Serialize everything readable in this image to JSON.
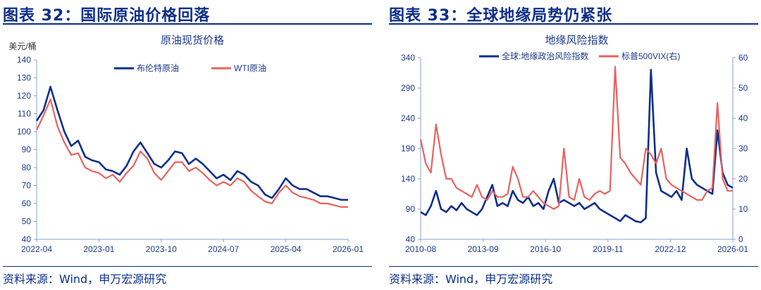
{
  "left": {
    "title": "图表 32：国际原油价格回落",
    "source": "资料来源：Wind，申万宏源研究"
  },
  "right": {
    "title": "图表 33：全球地缘局势仍紧张",
    "source": "资料来源：Wind，申万宏源研究"
  },
  "colors": {
    "navy": "#0e2f8c",
    "red": "#e8625f",
    "text": "#1d3a8a"
  },
  "chart_data": [
    {
      "type": "line",
      "title": "原油现货价格",
      "ylabel": "美元/桶",
      "ylim": [
        40,
        140
      ],
      "yticks": [
        "40",
        "50",
        "60",
        "70",
        "80",
        "90",
        "100",
        "110",
        "120",
        "130",
        "140"
      ],
      "xticks": [
        "2022-04",
        "2023-01",
        "2023-10",
        "2024-07",
        "2025-04",
        "2026-01"
      ],
      "x_start": "2022-04",
      "x_end": "2026-01",
      "legend": "top",
      "series": [
        {
          "name": "布伦特原油",
          "color": "#0e2f8c",
          "values": [
            106,
            112,
            125,
            112,
            100,
            92,
            95,
            86,
            84,
            83,
            79,
            78,
            76,
            81,
            89,
            94,
            88,
            82,
            80,
            84,
            89,
            88,
            82,
            85,
            82,
            78,
            74,
            76,
            73,
            78,
            76,
            72,
            70,
            65,
            63,
            68,
            74,
            70,
            68,
            68,
            66,
            64,
            64,
            63,
            62,
            62
          ]
        },
        {
          "name": "WTI原油",
          "color": "#e8625f",
          "values": [
            101,
            109,
            118,
            103,
            94,
            87,
            88,
            80,
            78,
            77,
            74,
            76,
            72,
            77,
            81,
            89,
            85,
            77,
            73,
            78,
            83,
            83,
            78,
            80,
            77,
            73,
            70,
            72,
            70,
            74,
            72,
            67,
            64,
            61,
            60,
            66,
            70,
            66,
            64,
            63,
            62,
            60,
            60,
            59,
            58,
            58
          ]
        }
      ]
    },
    {
      "type": "line",
      "title": "地缘风险指数",
      "ylim": [
        40,
        340
      ],
      "yticks": [
        "40",
        "90",
        "140",
        "190",
        "240",
        "290",
        "340"
      ],
      "y2lim": [
        0,
        60
      ],
      "y2ticks": [
        "0",
        "10",
        "20",
        "30",
        "40",
        "50",
        "60"
      ],
      "xticks": [
        "2010-08",
        "2013-09",
        "2016-10",
        "2019-11",
        "2022-12",
        "2026-01"
      ],
      "x_start": "2010-08",
      "x_end": "2026-01",
      "legend": "top",
      "series": [
        {
          "name": "全球:地缘政治风险指数",
          "axis": "left",
          "color": "#0e2f8c",
          "values": [
            85,
            80,
            95,
            120,
            90,
            85,
            95,
            88,
            100,
            90,
            85,
            80,
            90,
            110,
            130,
            95,
            100,
            95,
            120,
            105,
            100,
            110,
            95,
            100,
            90,
            120,
            140,
            100,
            105,
            100,
            95,
            100,
            90,
            95,
            100,
            90,
            85,
            80,
            75,
            70,
            80,
            75,
            70,
            68,
            75,
            320,
            150,
            120,
            115,
            110,
            120,
            105,
            190,
            140,
            130,
            125,
            120,
            115,
            220,
            150,
            130,
            125
          ]
        },
        {
          "name": "标普500VIX(右)",
          "axis": "right",
          "color": "#e8625f",
          "values": [
            33,
            25,
            22,
            38,
            28,
            20,
            20,
            17,
            16,
            15,
            14,
            18,
            14,
            13,
            16,
            14,
            14,
            15,
            24,
            20,
            14,
            14,
            16,
            14,
            12,
            11,
            10,
            11,
            30,
            14,
            13,
            20,
            14,
            13,
            15,
            16,
            15,
            16,
            57,
            27,
            25,
            22,
            20,
            18,
            30,
            28,
            25,
            30,
            20,
            18,
            17,
            16,
            15,
            14,
            13,
            13,
            16,
            17,
            45,
            20,
            16,
            16
          ]
        }
      ]
    }
  ]
}
